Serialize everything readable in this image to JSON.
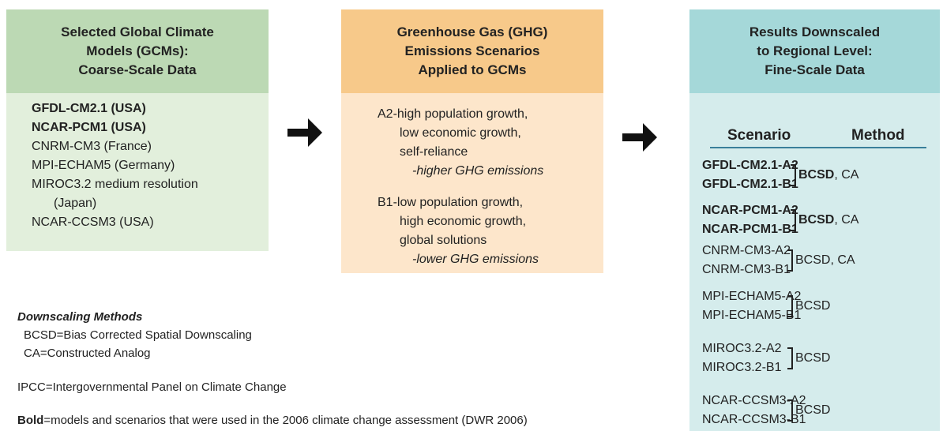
{
  "gcm_box": {
    "header": [
      "Selected Global Climate",
      "Models (GCMs):",
      "Coarse-Scale Data"
    ],
    "models": [
      {
        "text": "GFDL-CM2.1 (USA)",
        "bold": true
      },
      {
        "text": "NCAR-PCM1 (USA)",
        "bold": true
      },
      {
        "text": "CNRM-CM3 (France)",
        "bold": false
      },
      {
        "text": "MPI-ECHAM5 (Germany)",
        "bold": false
      },
      {
        "text": "MIROC3.2 medium resolution",
        "bold": false
      },
      {
        "text": "(Japan)",
        "bold": false,
        "indent": true
      },
      {
        "text": "NCAR-CCSM3 (USA)",
        "bold": false
      }
    ]
  },
  "ghg_box": {
    "header": [
      "Greenhouse Gas (GHG)",
      "Emissions Scenarios",
      "Applied to GCMs"
    ],
    "scenarios": [
      {
        "lines": [
          "A2-high population growth,",
          "low economic growth,",
          "self-reliance"
        ],
        "emissions": "-higher GHG emissions"
      },
      {
        "lines": [
          "B1-low population growth,",
          "high economic growth,",
          "global solutions"
        ],
        "emissions": "-lower GHG emissions"
      }
    ]
  },
  "results_box": {
    "header": [
      "Results Downscaled",
      "to Regional Level:",
      "Fine-Scale Data"
    ],
    "columns": [
      "Scenario",
      "Method"
    ],
    "rows": [
      {
        "scenarios": [
          "GFDL-CM2.1-A2",
          "GFDL-CM2.1-B1"
        ],
        "bold": true,
        "method": "BCSD",
        "method_extra": ", CA"
      },
      {
        "scenarios": [
          "NCAR-PCM1-A2",
          "NCAR-PCM1-B1"
        ],
        "bold": true,
        "method": "BCSD",
        "method_extra": ", CA"
      },
      {
        "scenarios": [
          "CNRM-CM3-A2",
          "CNRM-CM3-B1"
        ],
        "bold": false,
        "method": "BCSD",
        "method_extra": ", CA"
      },
      {
        "scenarios": [
          "MPI-ECHAM5-A2",
          "MPI-ECHAM5-B1"
        ],
        "bold": false,
        "method": "BCSD"
      },
      {
        "scenarios": [
          "MIROC3.2-A2",
          "MIROC3.2-B1"
        ],
        "bold": false,
        "method": "BCSD"
      },
      {
        "scenarios": [
          "NCAR-CCSM3-A2",
          "NCAR-CCSM3-B1"
        ],
        "bold": false,
        "method": "BCSD"
      }
    ]
  },
  "notes": {
    "methods_title": "Downscaling Methods",
    "methods": [
      "BCSD=Bias Corrected Spatial Downscaling",
      "CA=Constructed Analog"
    ],
    "ipcc": "IPCC=Intergovernmental Panel on Climate Change",
    "bold_term": "Bold",
    "bold_text": "=models and scenarios that were used in the 2006 climate change assessment (DWR 2006)"
  }
}
